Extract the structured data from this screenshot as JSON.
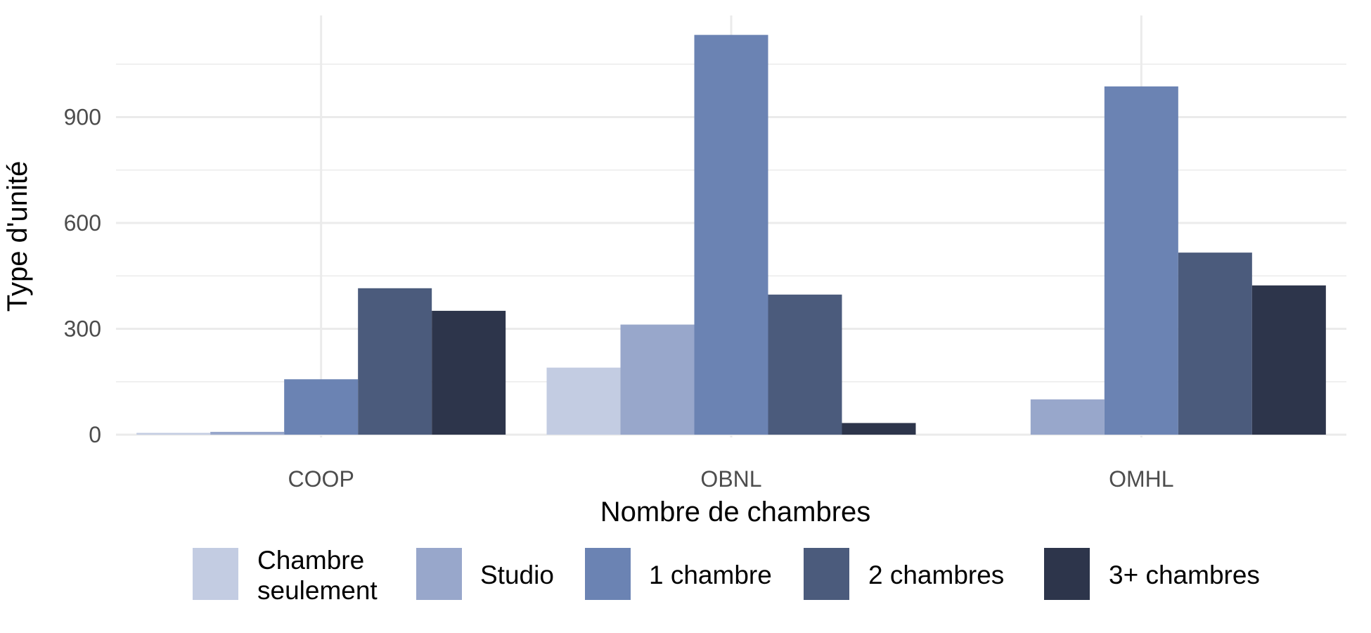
{
  "chart_data": {
    "type": "bar",
    "title": "",
    "xlabel": "Nombre de chambres",
    "ylabel": "Type d'unité",
    "categories": [
      "COOP",
      "OBNL",
      "OMHL"
    ],
    "series": [
      {
        "name": "Chambre seulement",
        "label_lines": [
          "Chambre",
          "seulement"
        ],
        "color": "#c3cce2",
        "values": [
          5,
          190,
          0
        ]
      },
      {
        "name": "Studio",
        "label_lines": [
          "Studio"
        ],
        "color": "#98a7cb",
        "values": [
          8,
          312,
          100
        ]
      },
      {
        "name": "1 chambre",
        "label_lines": [
          "1 chambre"
        ],
        "color": "#6b83b3",
        "values": [
          157,
          1133,
          987
        ]
      },
      {
        "name": "2 chambres",
        "label_lines": [
          "2 chambres"
        ],
        "color": "#4b5b7c",
        "values": [
          415,
          397,
          516
        ]
      },
      {
        "name": "3+ chambres",
        "label_lines": [
          "3+ chambres"
        ],
        "color": "#2d354b",
        "values": [
          351,
          33,
          423
        ]
      }
    ],
    "yticks": [
      0,
      300,
      600,
      900
    ],
    "ylim": [
      0,
      1190
    ],
    "grid": true,
    "legend_position": "bottom"
  }
}
